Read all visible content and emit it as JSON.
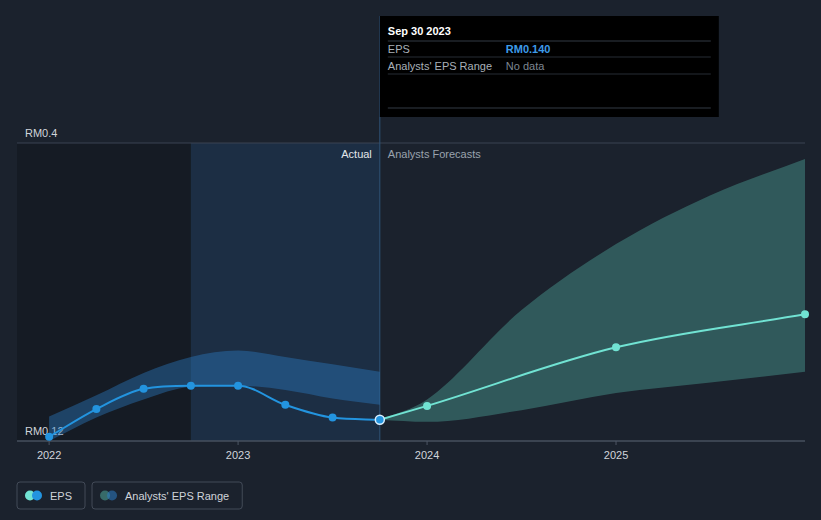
{
  "chart_data": {
    "type": "line",
    "xlim": [
      2021.83,
      2026.0
    ],
    "xticks": [
      2022,
      2023,
      2024,
      2025
    ],
    "ylim": [
      0.12,
      0.4
    ],
    "yticks": [
      {
        "value": 0.12,
        "label": "RM0.12"
      },
      {
        "value": 0.4,
        "label": "RM0.4"
      }
    ],
    "grid": true,
    "legend": "bottom-left",
    "highlight": [
      2022.75,
      2023.75
    ],
    "annotations": [
      {
        "text": "Actual",
        "x": 2023.75
      },
      {
        "text": "Analysts Forecasts",
        "x": 2023.75
      }
    ],
    "tooltip": {
      "x": 2023.75,
      "title": "Sep 30 2023",
      "rows": [
        {
          "label": "EPS",
          "value": "RM0.140"
        },
        {
          "label": "Analysts' EPS Range",
          "value": "No data"
        }
      ]
    },
    "series": [
      {
        "name": "Analysts' EPS Range",
        "type": "area",
        "x": [
          2022.0,
          2022.25,
          2022.5,
          2022.75,
          2023.0,
          2023.25,
          2023.5,
          2023.75,
          2023.75,
          2024.0,
          2024.5,
          2025.0,
          2025.5,
          2026.0
        ],
        "upper": [
          0.143,
          0.163,
          0.184,
          0.199,
          0.205,
          0.199,
          0.192,
          0.185,
          0.14,
          0.159,
          0.243,
          0.305,
          0.351,
          0.385
        ],
        "lower": [
          0.12,
          0.142,
          0.159,
          0.171,
          0.172,
          0.168,
          0.16,
          0.154,
          0.14,
          0.138,
          0.149,
          0.165,
          0.175,
          0.185
        ],
        "colors": [
          "#2b7bc4",
          "#2b7bc4",
          "#2b7bc4",
          "#2b7bc4",
          "#2b7bc4",
          "#2b7bc4",
          "#2b7bc4",
          "#2b7bc4",
          "#4fa89a",
          "#4fa89a",
          "#4fa89a",
          "#4fa89a",
          "#4fa89a",
          "#4fa89a"
        ]
      },
      {
        "name": "EPS",
        "type": "line",
        "marker": "circle",
        "x": [
          2022.0,
          2022.25,
          2022.5,
          2022.75,
          2023.0,
          2023.25,
          2023.5,
          2023.75,
          2024.0,
          2025.0,
          2026.0
        ],
        "values": [
          0.124,
          0.15,
          0.169,
          0.172,
          0.172,
          0.154,
          0.142,
          0.14,
          0.153,
          0.208,
          0.239
        ],
        "colors": [
          "#2394df",
          "#2394df",
          "#2394df",
          "#2394df",
          "#2394df",
          "#2394df",
          "#2394df",
          "#2394df",
          "#71e3d3",
          "#71e3d3",
          "#71e3d3"
        ]
      }
    ]
  }
}
